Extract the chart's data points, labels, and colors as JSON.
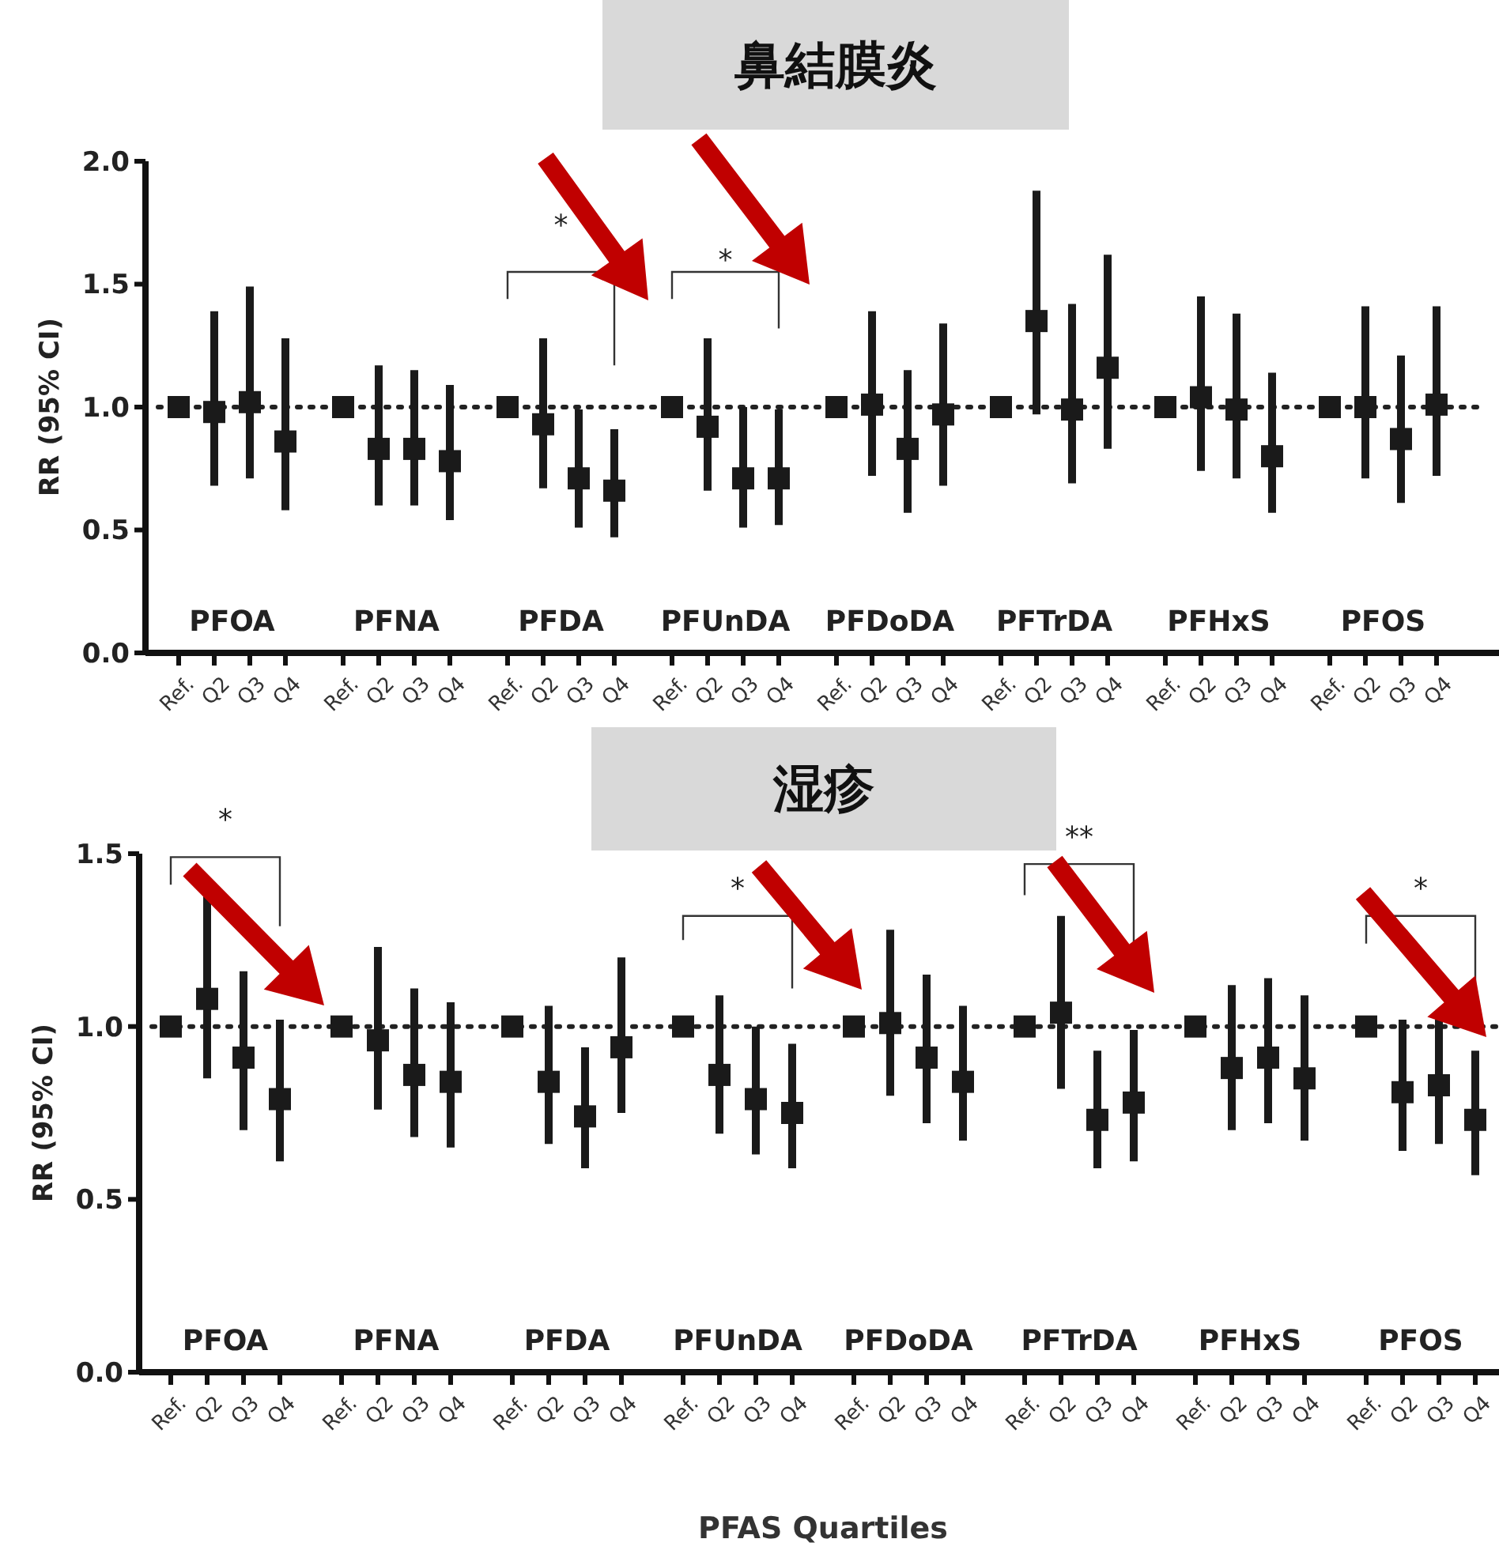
{
  "chart_data": [
    {
      "type": "scatter",
      "title": "鼻結膜炎",
      "ylabel": "RR (95% CI)",
      "marker": "square",
      "categories": [
        "Ref.",
        "Q2",
        "Q3",
        "Q4",
        "Ref.",
        "Q2",
        "Q3",
        "Q4",
        "Ref.",
        "Q2",
        "Q3",
        "Q4",
        "Ref.",
        "Q2",
        "Q3",
        "Q4",
        "Ref.",
        "Q2",
        "Q3",
        "Q4",
        "Ref.",
        "Q2",
        "Q3",
        "Q4",
        "Ref.",
        "Q2",
        "Q3",
        "Q4",
        "Ref.",
        "Q2",
        "Q3",
        "Q4"
      ],
      "ylim": [
        0,
        2
      ],
      "yticks": [
        {
          "value": 0,
          "label": "0.0"
        },
        {
          "value": 0.5,
          "label": "0.5"
        },
        {
          "value": 1,
          "label": "1.0"
        },
        {
          "value": 1.5,
          "label": "1.5"
        },
        {
          "value": 2,
          "label": "2.0"
        }
      ],
      "ref_lines": [
        {
          "axis": "y",
          "value": 1,
          "line_style": "dotted",
          "color": "#222222"
        }
      ],
      "series": [
        {
          "color": "#1a1a1a",
          "values": [
            1,
            0.98,
            1.02,
            0.86,
            1,
            0.83,
            0.83,
            0.78,
            1,
            0.93,
            0.71,
            0.66,
            1,
            0.92,
            0.71,
            0.71,
            1,
            1.01,
            0.83,
            0.97,
            1,
            1.35,
            0.99,
            1.16,
            1,
            1.04,
            0.99,
            0.8,
            1,
            1,
            0.87,
            1.01
          ],
          "errors": [
            null,
            [
              0.68,
              1.39
            ],
            [
              0.71,
              1.49
            ],
            [
              0.58,
              1.28
            ],
            null,
            [
              0.6,
              1.17
            ],
            [
              0.6,
              1.15
            ],
            [
              0.54,
              1.09
            ],
            null,
            [
              0.67,
              1.28
            ],
            [
              0.51,
              0.99
            ],
            [
              0.47,
              0.91
            ],
            null,
            [
              0.66,
              1.28
            ],
            [
              0.51,
              1
            ],
            [
              0.52,
              0.99
            ],
            null,
            [
              0.72,
              1.39
            ],
            [
              0.57,
              1.15
            ],
            [
              0.68,
              1.34
            ],
            null,
            [
              0.97,
              1.88
            ],
            [
              0.69,
              1.42
            ],
            [
              0.83,
              1.62
            ],
            null,
            [
              0.74,
              1.45
            ],
            [
              0.71,
              1.38
            ],
            [
              0.57,
              1.14
            ],
            null,
            [
              0.71,
              1.41
            ],
            [
              0.61,
              1.21
            ],
            [
              0.72,
              1.41
            ]
          ]
        }
      ],
      "annotations": [
        "PFOA",
        "PFNA",
        "PFDA",
        "PFUnDA",
        "PFDoDA",
        "PFTrDA",
        "PFHxS",
        "PFOS",
        "*",
        "*"
      ]
    },
    {
      "type": "scatter",
      "title": "湿疹",
      "ylabel": "RR (95% CI)",
      "xlabel": "PFAS Quartiles",
      "marker": "square",
      "categories": [
        "Ref.",
        "Q2",
        "Q3",
        "Q4",
        "Ref.",
        "Q2",
        "Q3",
        "Q4",
        "Ref.",
        "Q2",
        "Q3",
        "Q4",
        "Ref.",
        "Q2",
        "Q3",
        "Q4",
        "Ref.",
        "Q2",
        "Q3",
        "Q4",
        "Ref.",
        "Q2",
        "Q3",
        "Q4",
        "Ref.",
        "Q2",
        "Q3",
        "Q4",
        "Ref.",
        "Q2",
        "Q3",
        "Q4"
      ],
      "ylim": [
        0,
        1.5
      ],
      "yticks": [
        {
          "value": 0,
          "label": "0.0"
        },
        {
          "value": 0.5,
          "label": "0.5"
        },
        {
          "value": 1,
          "label": "1.0"
        },
        {
          "value": 1.5,
          "label": "1.5"
        }
      ],
      "ref_lines": [
        {
          "axis": "y",
          "value": 1,
          "line_style": "dotted",
          "color": "#222222"
        }
      ],
      "series": [
        {
          "color": "#1a1a1a",
          "values": [
            1,
            1.08,
            0.91,
            0.79,
            1,
            0.96,
            0.86,
            0.84,
            1,
            0.84,
            0.74,
            0.94,
            1,
            0.86,
            0.79,
            0.75,
            1,
            1.01,
            0.91,
            0.84,
            1,
            1.04,
            0.73,
            0.78,
            1,
            0.88,
            0.91,
            0.85,
            1,
            0.81,
            0.83,
            0.73
          ],
          "errors": [
            null,
            [
              0.85,
              1.38
            ],
            [
              0.7,
              1.16
            ],
            [
              0.61,
              1.02
            ],
            null,
            [
              0.76,
              1.23
            ],
            [
              0.68,
              1.11
            ],
            [
              0.65,
              1.07
            ],
            null,
            [
              0.66,
              1.06
            ],
            [
              0.59,
              0.94
            ],
            [
              0.75,
              1.2
            ],
            null,
            [
              0.69,
              1.09
            ],
            [
              0.63,
              1
            ],
            [
              0.59,
              0.95
            ],
            null,
            [
              0.8,
              1.28
            ],
            [
              0.72,
              1.15
            ],
            [
              0.67,
              1.06
            ],
            null,
            [
              0.82,
              1.32
            ],
            [
              0.59,
              0.93
            ],
            [
              0.61,
              0.99
            ],
            null,
            [
              0.7,
              1.12
            ],
            [
              0.72,
              1.14
            ],
            [
              0.67,
              1.09
            ],
            null,
            [
              0.64,
              1.02
            ],
            [
              0.66,
              1.02
            ],
            [
              0.57,
              0.93
            ]
          ]
        }
      ],
      "annotations": [
        "PFOA",
        "PFNA",
        "PFDA",
        "PFUnDA",
        "PFDoDA",
        "PFTrDA",
        "PFHxS",
        "PFOS",
        "*",
        "*",
        "**",
        "*"
      ]
    }
  ]
}
